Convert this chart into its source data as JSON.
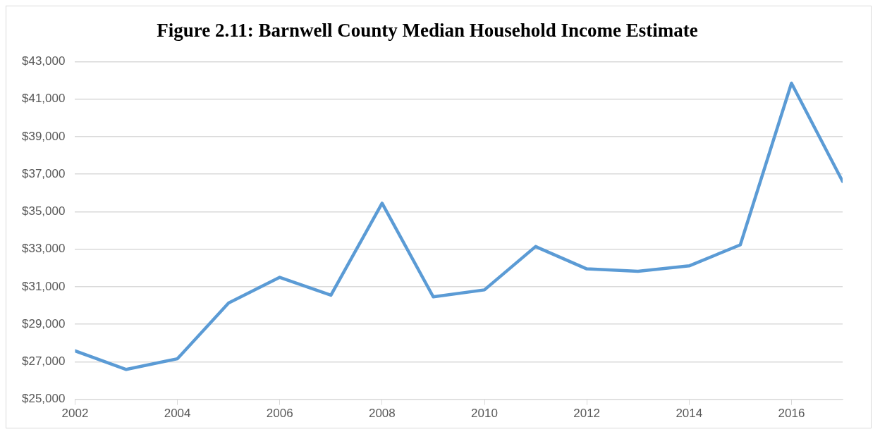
{
  "chart_data": {
    "type": "line",
    "title": "Figure 2.11: Barnwell County Median Household Income Estimate",
    "x": [
      2002,
      2003,
      2004,
      2005,
      2006,
      2007,
      2008,
      2009,
      2010,
      2011,
      2012,
      2013,
      2014,
      2015,
      2016,
      2017
    ],
    "series": [
      {
        "color": "#5b9bd5",
        "values": [
          27580,
          26590,
          27160,
          30130,
          31500,
          30550,
          35450,
          30460,
          30830,
          33140,
          31950,
          31820,
          32110,
          33230,
          41850,
          36610
        ]
      }
    ],
    "xlim": [
      2002,
      2017
    ],
    "xticks": [
      2002,
      2004,
      2006,
      2008,
      2010,
      2012,
      2014,
      2016
    ],
    "ylim": [
      25000,
      43000
    ],
    "yticks": [
      {
        "value": 25000,
        "label": "$25,000"
      },
      {
        "value": 27000,
        "label": "$27,000"
      },
      {
        "value": 29000,
        "label": "$29,000"
      },
      {
        "value": 31000,
        "label": "$31,000"
      },
      {
        "value": 33000,
        "label": "$33,000"
      },
      {
        "value": 35000,
        "label": "$35,000"
      },
      {
        "value": 37000,
        "label": "$37,000"
      },
      {
        "value": 39000,
        "label": "$39,000"
      },
      {
        "value": 41000,
        "label": "$41,000"
      },
      {
        "value": 43000,
        "label": "$43,000"
      }
    ],
    "grid": "y",
    "legend": false,
    "marker": "none",
    "line_style": "solid"
  }
}
